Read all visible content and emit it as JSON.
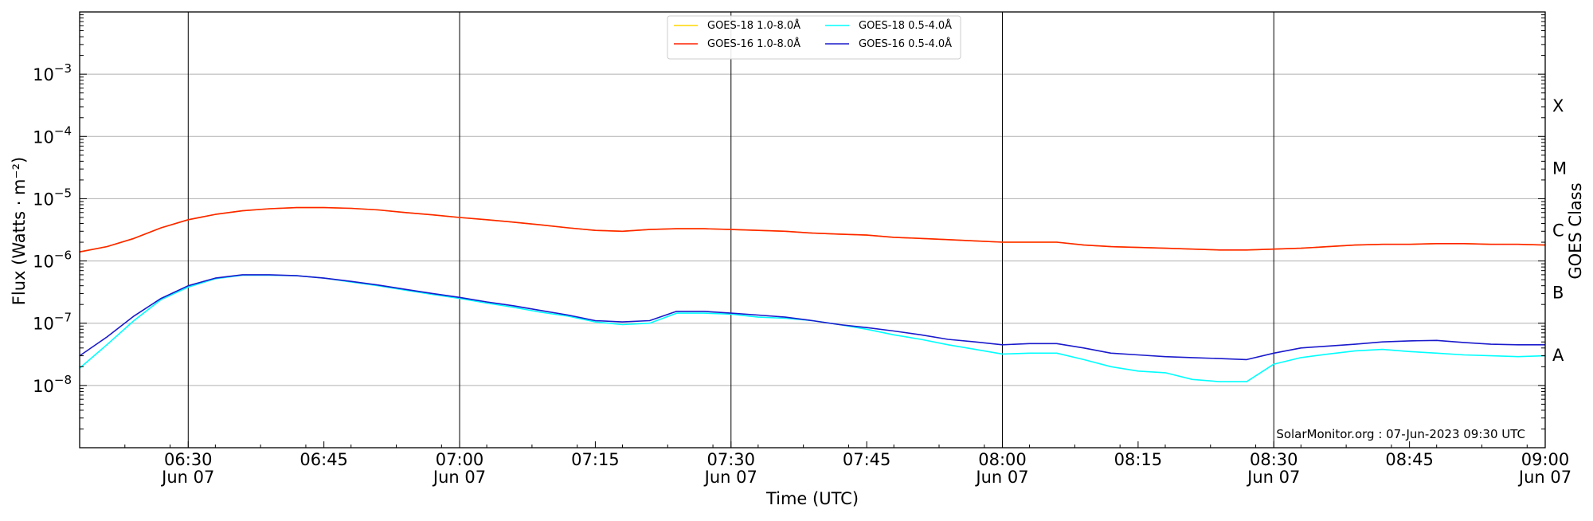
{
  "chart_data": {
    "type": "line",
    "xlabel": "Time (UTC)",
    "ylabel": "Flux (Watts · m⁻²)",
    "ylabel_right": "GOES Class",
    "y_scale": "log",
    "ylim": [
      1e-09,
      0.01
    ],
    "xlim": [
      "06:18",
      "09:00"
    ],
    "grid": "horizontal at decades; vertical lines at half hours",
    "legend_position": "top-center",
    "credit": "SolarMonitor.org : 07-Jun-2023 09:30 UTC",
    "x_ticks": [
      {
        "time": "06:30",
        "date": "Jun 07",
        "major": true
      },
      {
        "time": "06:45",
        "date": "",
        "major": false
      },
      {
        "time": "07:00",
        "date": "Jun 07",
        "major": true
      },
      {
        "time": "07:15",
        "date": "",
        "major": false
      },
      {
        "time": "07:30",
        "date": "Jun 07",
        "major": true
      },
      {
        "time": "07:45",
        "date": "",
        "major": false
      },
      {
        "time": "08:00",
        "date": "Jun 07",
        "major": true
      },
      {
        "time": "08:15",
        "date": "",
        "major": false
      },
      {
        "time": "08:30",
        "date": "Jun 07",
        "major": true
      },
      {
        "time": "08:45",
        "date": "",
        "major": false
      },
      {
        "time": "09:00",
        "date": "Jun 07",
        "major": true
      }
    ],
    "y_ticks": [
      {
        "value": 1e-08,
        "base": "10",
        "exp": "−8"
      },
      {
        "value": 1e-07,
        "base": "10",
        "exp": "−7"
      },
      {
        "value": 1e-06,
        "base": "10",
        "exp": "−6"
      },
      {
        "value": 1e-05,
        "base": "10",
        "exp": "−5"
      },
      {
        "value": 0.0001,
        "base": "10",
        "exp": "−4"
      },
      {
        "value": 0.001,
        "base": "10",
        "exp": "−3"
      }
    ],
    "goes_classes": [
      {
        "label": "A",
        "value": 3.16e-08
      },
      {
        "label": "B",
        "value": 3.16e-07
      },
      {
        "label": "C",
        "value": 3.16e-06
      },
      {
        "label": "M",
        "value": 3.16e-05
      },
      {
        "label": "X",
        "value": 0.000316
      }
    ],
    "series": [
      {
        "name": "GOES-18 1.0-8.0Å",
        "color": "#ffd700",
        "x": [
          "06:18",
          "06:21",
          "06:24",
          "06:27",
          "06:30",
          "06:33",
          "06:36",
          "06:39",
          "06:42",
          "06:45",
          "06:48",
          "06:51",
          "06:54",
          "06:57",
          "07:00",
          "07:03",
          "07:06",
          "07:09",
          "07:12",
          "07:15",
          "07:18",
          "07:21",
          "07:24",
          "07:27",
          "07:30",
          "07:33",
          "07:36",
          "07:39",
          "07:42",
          "07:45",
          "07:48",
          "07:51",
          "07:54",
          "07:57",
          "08:00",
          "08:03",
          "08:06",
          "08:09",
          "08:12",
          "08:15",
          "08:18",
          "08:21",
          "08:24",
          "08:27",
          "08:30",
          "08:33",
          "08:36",
          "08:39",
          "08:42",
          "08:45",
          "08:48",
          "08:51",
          "08:54",
          "08:57",
          "09:00"
        ],
        "values": [
          1.4e-06,
          1.7e-06,
          2.3e-06,
          3.4e-06,
          4.6e-06,
          5.6e-06,
          6.4e-06,
          6.9e-06,
          7.2e-06,
          7.2e-06,
          7e-06,
          6.6e-06,
          6e-06,
          5.5e-06,
          5e-06,
          4.6e-06,
          4.2e-06,
          3.8e-06,
          3.4e-06,
          3.1e-06,
          3e-06,
          3.2e-06,
          3.3e-06,
          3.3e-06,
          3.2e-06,
          3.1e-06,
          3e-06,
          2.8e-06,
          2.7e-06,
          2.6e-06,
          2.4e-06,
          2.3e-06,
          2.2e-06,
          2.1e-06,
          2e-06,
          2e-06,
          2e-06,
          1.8e-06,
          1.7e-06,
          1.65e-06,
          1.6e-06,
          1.55e-06,
          1.5e-06,
          1.5e-06,
          1.55e-06,
          1.6e-06,
          1.7e-06,
          1.8e-06,
          1.85e-06,
          1.85e-06,
          1.9e-06,
          1.9e-06,
          1.85e-06,
          1.85e-06,
          1.8e-06
        ]
      },
      {
        "name": "GOES-16 1.0-8.0Å",
        "color": "#ff2200",
        "x": [
          "06:18",
          "06:21",
          "06:24",
          "06:27",
          "06:30",
          "06:33",
          "06:36",
          "06:39",
          "06:42",
          "06:45",
          "06:48",
          "06:51",
          "06:54",
          "06:57",
          "07:00",
          "07:03",
          "07:06",
          "07:09",
          "07:12",
          "07:15",
          "07:18",
          "07:21",
          "07:24",
          "07:27",
          "07:30",
          "07:33",
          "07:36",
          "07:39",
          "07:42",
          "07:45",
          "07:48",
          "07:51",
          "07:54",
          "07:57",
          "08:00",
          "08:03",
          "08:06",
          "08:09",
          "08:12",
          "08:15",
          "08:18",
          "08:21",
          "08:24",
          "08:27",
          "08:30",
          "08:33",
          "08:36",
          "08:39",
          "08:42",
          "08:45",
          "08:48",
          "08:51",
          "08:54",
          "08:57",
          "09:00"
        ],
        "values": [
          1.4e-06,
          1.7e-06,
          2.3e-06,
          3.4e-06,
          4.6e-06,
          5.6e-06,
          6.4e-06,
          6.9e-06,
          7.2e-06,
          7.2e-06,
          7e-06,
          6.6e-06,
          6e-06,
          5.5e-06,
          5e-06,
          4.6e-06,
          4.2e-06,
          3.8e-06,
          3.4e-06,
          3.1e-06,
          3e-06,
          3.2e-06,
          3.3e-06,
          3.3e-06,
          3.2e-06,
          3.1e-06,
          3e-06,
          2.8e-06,
          2.7e-06,
          2.6e-06,
          2.4e-06,
          2.3e-06,
          2.2e-06,
          2.1e-06,
          2e-06,
          2e-06,
          2e-06,
          1.8e-06,
          1.7e-06,
          1.65e-06,
          1.6e-06,
          1.55e-06,
          1.5e-06,
          1.5e-06,
          1.55e-06,
          1.6e-06,
          1.7e-06,
          1.8e-06,
          1.85e-06,
          1.85e-06,
          1.9e-06,
          1.9e-06,
          1.85e-06,
          1.85e-06,
          1.8e-06
        ]
      },
      {
        "name": "GOES-18 0.5-4.0Å",
        "color": "#00ffff",
        "x": [
          "06:18",
          "06:21",
          "06:24",
          "06:27",
          "06:30",
          "06:33",
          "06:36",
          "06:39",
          "06:42",
          "06:45",
          "06:48",
          "06:51",
          "06:54",
          "06:57",
          "07:00",
          "07:03",
          "07:06",
          "07:09",
          "07:12",
          "07:15",
          "07:18",
          "07:21",
          "07:24",
          "07:27",
          "07:30",
          "07:33",
          "07:36",
          "07:39",
          "07:42",
          "07:45",
          "07:48",
          "07:51",
          "07:54",
          "07:57",
          "08:00",
          "08:03",
          "08:06",
          "08:09",
          "08:12",
          "08:15",
          "08:18",
          "08:21",
          "08:24",
          "08:27",
          "08:30",
          "08:33",
          "08:36",
          "08:39",
          "08:42",
          "08:45",
          "08:48",
          "08:51",
          "08:54",
          "08:57",
          "09:00"
        ],
        "values": [
          1.9e-08,
          4.5e-08,
          1.1e-07,
          2.4e-07,
          3.8e-07,
          5.2e-07,
          5.9e-07,
          5.9e-07,
          5.8e-07,
          5.3e-07,
          4.6e-07,
          4e-07,
          3.4e-07,
          2.9e-07,
          2.5e-07,
          2.1e-07,
          1.8e-07,
          1.5e-07,
          1.3e-07,
          1.05e-07,
          9.5e-08,
          1e-07,
          1.45e-07,
          1.45e-07,
          1.4e-07,
          1.25e-07,
          1.2e-07,
          1.1e-07,
          9.5e-08,
          8e-08,
          6.5e-08,
          5.5e-08,
          4.5e-08,
          3.8e-08,
          3.2e-08,
          3.3e-08,
          3.3e-08,
          2.6e-08,
          2e-08,
          1.7e-08,
          1.6e-08,
          1.25e-08,
          1.15e-08,
          1.15e-08,
          2.2e-08,
          2.8e-08,
          3.2e-08,
          3.6e-08,
          3.8e-08,
          3.5e-08,
          3.3e-08,
          3.1e-08,
          3e-08,
          2.9e-08,
          3e-08
        ]
      },
      {
        "name": "GOES-16 0.5-4.0Å",
        "color": "#1a1acc",
        "x": [
          "06:18",
          "06:21",
          "06:24",
          "06:27",
          "06:30",
          "06:33",
          "06:36",
          "06:39",
          "06:42",
          "06:45",
          "06:48",
          "06:51",
          "06:54",
          "06:57",
          "07:00",
          "07:03",
          "07:06",
          "07:09",
          "07:12",
          "07:15",
          "07:18",
          "07:21",
          "07:24",
          "07:27",
          "07:30",
          "07:33",
          "07:36",
          "07:39",
          "07:42",
          "07:45",
          "07:48",
          "07:51",
          "07:54",
          "07:57",
          "08:00",
          "08:03",
          "08:06",
          "08:09",
          "08:12",
          "08:15",
          "08:18",
          "08:21",
          "08:24",
          "08:27",
          "08:30",
          "08:33",
          "08:36",
          "08:39",
          "08:42",
          "08:45",
          "08:48",
          "08:51",
          "08:54",
          "08:57",
          "09:00"
        ],
        "values": [
          3e-08,
          6e-08,
          1.3e-07,
          2.5e-07,
          4e-07,
          5.3e-07,
          6e-07,
          6e-07,
          5.8e-07,
          5.3e-07,
          4.7e-07,
          4.1e-07,
          3.5e-07,
          3e-07,
          2.6e-07,
          2.2e-07,
          1.9e-07,
          1.6e-07,
          1.35e-07,
          1.1e-07,
          1.05e-07,
          1.1e-07,
          1.55e-07,
          1.55e-07,
          1.45e-07,
          1.35e-07,
          1.25e-07,
          1.1e-07,
          9.5e-08,
          8.5e-08,
          7.5e-08,
          6.5e-08,
          5.5e-08,
          5e-08,
          4.5e-08,
          4.7e-08,
          4.7e-08,
          4e-08,
          3.3e-08,
          3.1e-08,
          2.9e-08,
          2.8e-08,
          2.7e-08,
          2.6e-08,
          3.3e-08,
          4e-08,
          4.3e-08,
          4.6e-08,
          5e-08,
          5.2e-08,
          5.3e-08,
          4.9e-08,
          4.6e-08,
          4.5e-08,
          4.5e-08
        ]
      }
    ]
  }
}
